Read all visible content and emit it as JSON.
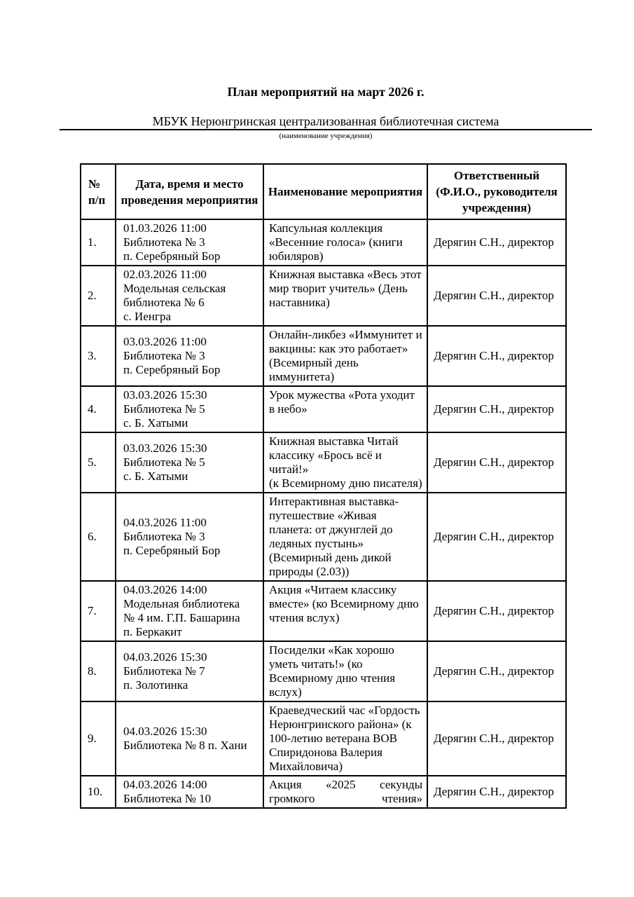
{
  "document": {
    "title": "План мероприятий на март 2026 г.",
    "organization": "МБУК Нерюнгринская централизованная библиотечная система",
    "organization_caption": "(наименование учреждения)"
  },
  "table": {
    "headers": {
      "num": "№ п/п",
      "datetime": "Дата, время и место проведения мероприятия",
      "name": "Наименование мероприятия",
      "responsible": "Ответственный (Ф.И.О., руководителя учреждения)"
    },
    "rows": [
      {
        "num": "1.",
        "datetime": "01.03.2026 11:00\nБиблиотека № 3\nп. Серебряный Бор",
        "name": "Капсульная коллекция «Весенние голоса» (книги юбиляров)",
        "responsible": "Дерягин С.Н., директор"
      },
      {
        "num": "2.",
        "datetime": "02.03.2026 11:00\nМодельная сельская\nбиблиотека № 6\nс. Иенгра",
        "name": "Книжная выставка «Весь этот мир творит учитель» (День наставника)",
        "responsible": "Дерягин С.Н., директор"
      },
      {
        "num": "3.",
        "datetime": "03.03.2026 11:00\nБиблиотека № 3\nп. Серебряный Бор",
        "name": "Онлайн-ликбез «Иммунитет и вакцины: как это работает» (Всемирный день иммунитета)",
        "responsible": "Дерягин С.Н., директор"
      },
      {
        "num": "4.",
        "datetime": "03.03.2026 15:30\nБиблиотека № 5\nс. Б. Хатыми",
        "name": "Урок мужества «Рота уходит в небо»",
        "responsible": "Дерягин С.Н., директор"
      },
      {
        "num": "5.",
        "datetime": "03.03.2026 15:30\nБиблиотека № 5\nс. Б. Хатыми",
        "name": "Книжная выставка Читай классику «Брось всё и читай!»\n(к Всемирному дню писателя)",
        "responsible": "Дерягин С.Н., директор"
      },
      {
        "num": "6.",
        "datetime": "04.03.2026 11:00\nБиблиотека № 3\nп. Серебряный Бор",
        "name": "Интерактивная выставка-путешествие «Живая планета: от джунглей до ледяных пустынь»\n(Всемирный день дикой природы (2.03))",
        "responsible": "Дерягин С.Н., директор"
      },
      {
        "num": "7.",
        "datetime": "04.03.2026 14:00\nМодельная библиотека\n№ 4 им. Г.П. Башарина\nп. Беркакит",
        "name": "Акция «Читаем классику вместе» (ко Всемирному дню чтения вслух)",
        "responsible": "Дерягин С.Н., директор"
      },
      {
        "num": "8.",
        "datetime": "04.03.2026 15:30\nБиблиотека № 7\nп. Золотинка",
        "name": "Посиделки «Как хорошо уметь читать!» (ко Всемирному дню чтения вслух)",
        "responsible": "Дерягин С.Н., директор"
      },
      {
        "num": "9.",
        "datetime": "04.03.2026 15:30\nБиблиотека № 8 п. Хани",
        "name": "Краеведческий час «Гордость\nНерюнгринского района» (к 100-летию ветерана ВОВ Спиридонова Валерия Михайловича)",
        "responsible": "Дерягин С.Н., директор"
      },
      {
        "num": "10.",
        "datetime": "04.03.2026 14:00\nБиблиотека № 10",
        "name": "Акция «2025 секунды громкого чтения»",
        "responsible": "Дерягин С.Н., директор"
      }
    ]
  }
}
